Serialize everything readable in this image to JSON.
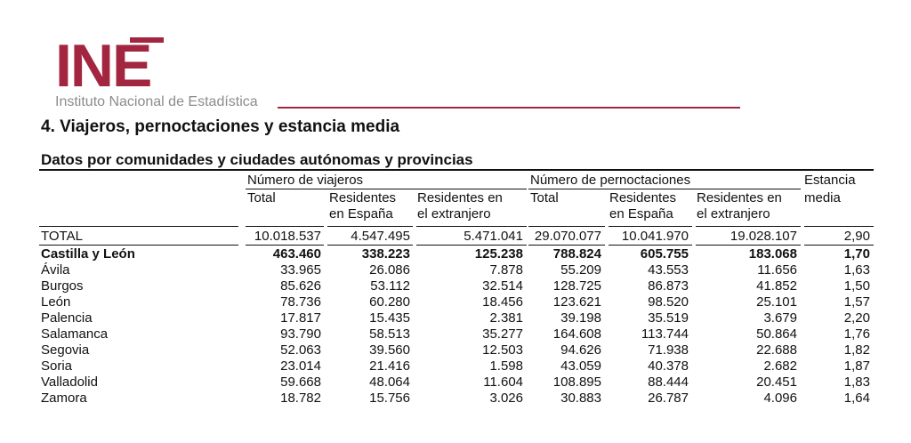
{
  "header": {
    "logo_text": "INE",
    "logo_subtitle": "Instituto Nacional de Estadística",
    "brand_color": "#a2263f"
  },
  "document": {
    "title": "4. Viajeros, pernoctaciones y estancia media",
    "subtitle": "Datos por comunidades y ciudades autónomas y provincias"
  },
  "table": {
    "group_headers": {
      "viajeros": "Número de viajeros",
      "pernoctaciones": "Número de pernoctaciones",
      "estancia_1": "Estancia",
      "estancia_2": "media"
    },
    "sub_headers": {
      "total_1": "Total",
      "res_espana_1a": "Residentes",
      "res_espana_1b": "en España",
      "res_extr_1a": "Residentes en",
      "res_extr_1b": "el extranjero",
      "total_2": "Total",
      "res_espana_2a": "Residentes",
      "res_espana_2b": "en España",
      "res_extr_2a": "Residentes en",
      "res_extr_2b": "el extranjero"
    },
    "rows": [
      {
        "label": "TOTAL",
        "v1": "10.018.537",
        "v2": "4.547.495",
        "v3": "5.471.041",
        "v4": "29.070.077",
        "v5": "10.041.970",
        "v6": "19.028.107",
        "v7": "2,90"
      },
      {
        "label": "Castilla y León",
        "v1": "463.460",
        "v2": "338.223",
        "v3": "125.238",
        "v4": "788.824",
        "v5": "605.755",
        "v6": "183.068",
        "v7": "1,70"
      },
      {
        "label": "Ávila",
        "v1": "33.965",
        "v2": "26.086",
        "v3": "7.878",
        "v4": "55.209",
        "v5": "43.553",
        "v6": "11.656",
        "v7": "1,63"
      },
      {
        "label": "Burgos",
        "v1": "85.626",
        "v2": "53.112",
        "v3": "32.514",
        "v4": "128.725",
        "v5": "86.873",
        "v6": "41.852",
        "v7": "1,50"
      },
      {
        "label": "León",
        "v1": "78.736",
        "v2": "60.280",
        "v3": "18.456",
        "v4": "123.621",
        "v5": "98.520",
        "v6": "25.101",
        "v7": "1,57"
      },
      {
        "label": "Palencia",
        "v1": "17.817",
        "v2": "15.435",
        "v3": "2.381",
        "v4": "39.198",
        "v5": "35.519",
        "v6": "3.679",
        "v7": "2,20"
      },
      {
        "label": "Salamanca",
        "v1": "93.790",
        "v2": "58.513",
        "v3": "35.277",
        "v4": "164.608",
        "v5": "113.744",
        "v6": "50.864",
        "v7": "1,76"
      },
      {
        "label": "Segovia",
        "v1": "52.063",
        "v2": "39.560",
        "v3": "12.503",
        "v4": "94.626",
        "v5": "71.938",
        "v6": "22.688",
        "v7": "1,82"
      },
      {
        "label": "Soria",
        "v1": "23.014",
        "v2": "21.416",
        "v3": "1.598",
        "v4": "43.059",
        "v5": "40.378",
        "v6": "2.682",
        "v7": "1,87"
      },
      {
        "label": "Valladolid",
        "v1": "59.668",
        "v2": "48.064",
        "v3": "11.604",
        "v4": "108.895",
        "v5": "88.444",
        "v6": "20.451",
        "v7": "1,83"
      },
      {
        "label": "Zamora",
        "v1": "18.782",
        "v2": "15.756",
        "v3": "3.026",
        "v4": "30.883",
        "v5": "26.787",
        "v6": "4.096",
        "v7": "1,64"
      }
    ]
  }
}
